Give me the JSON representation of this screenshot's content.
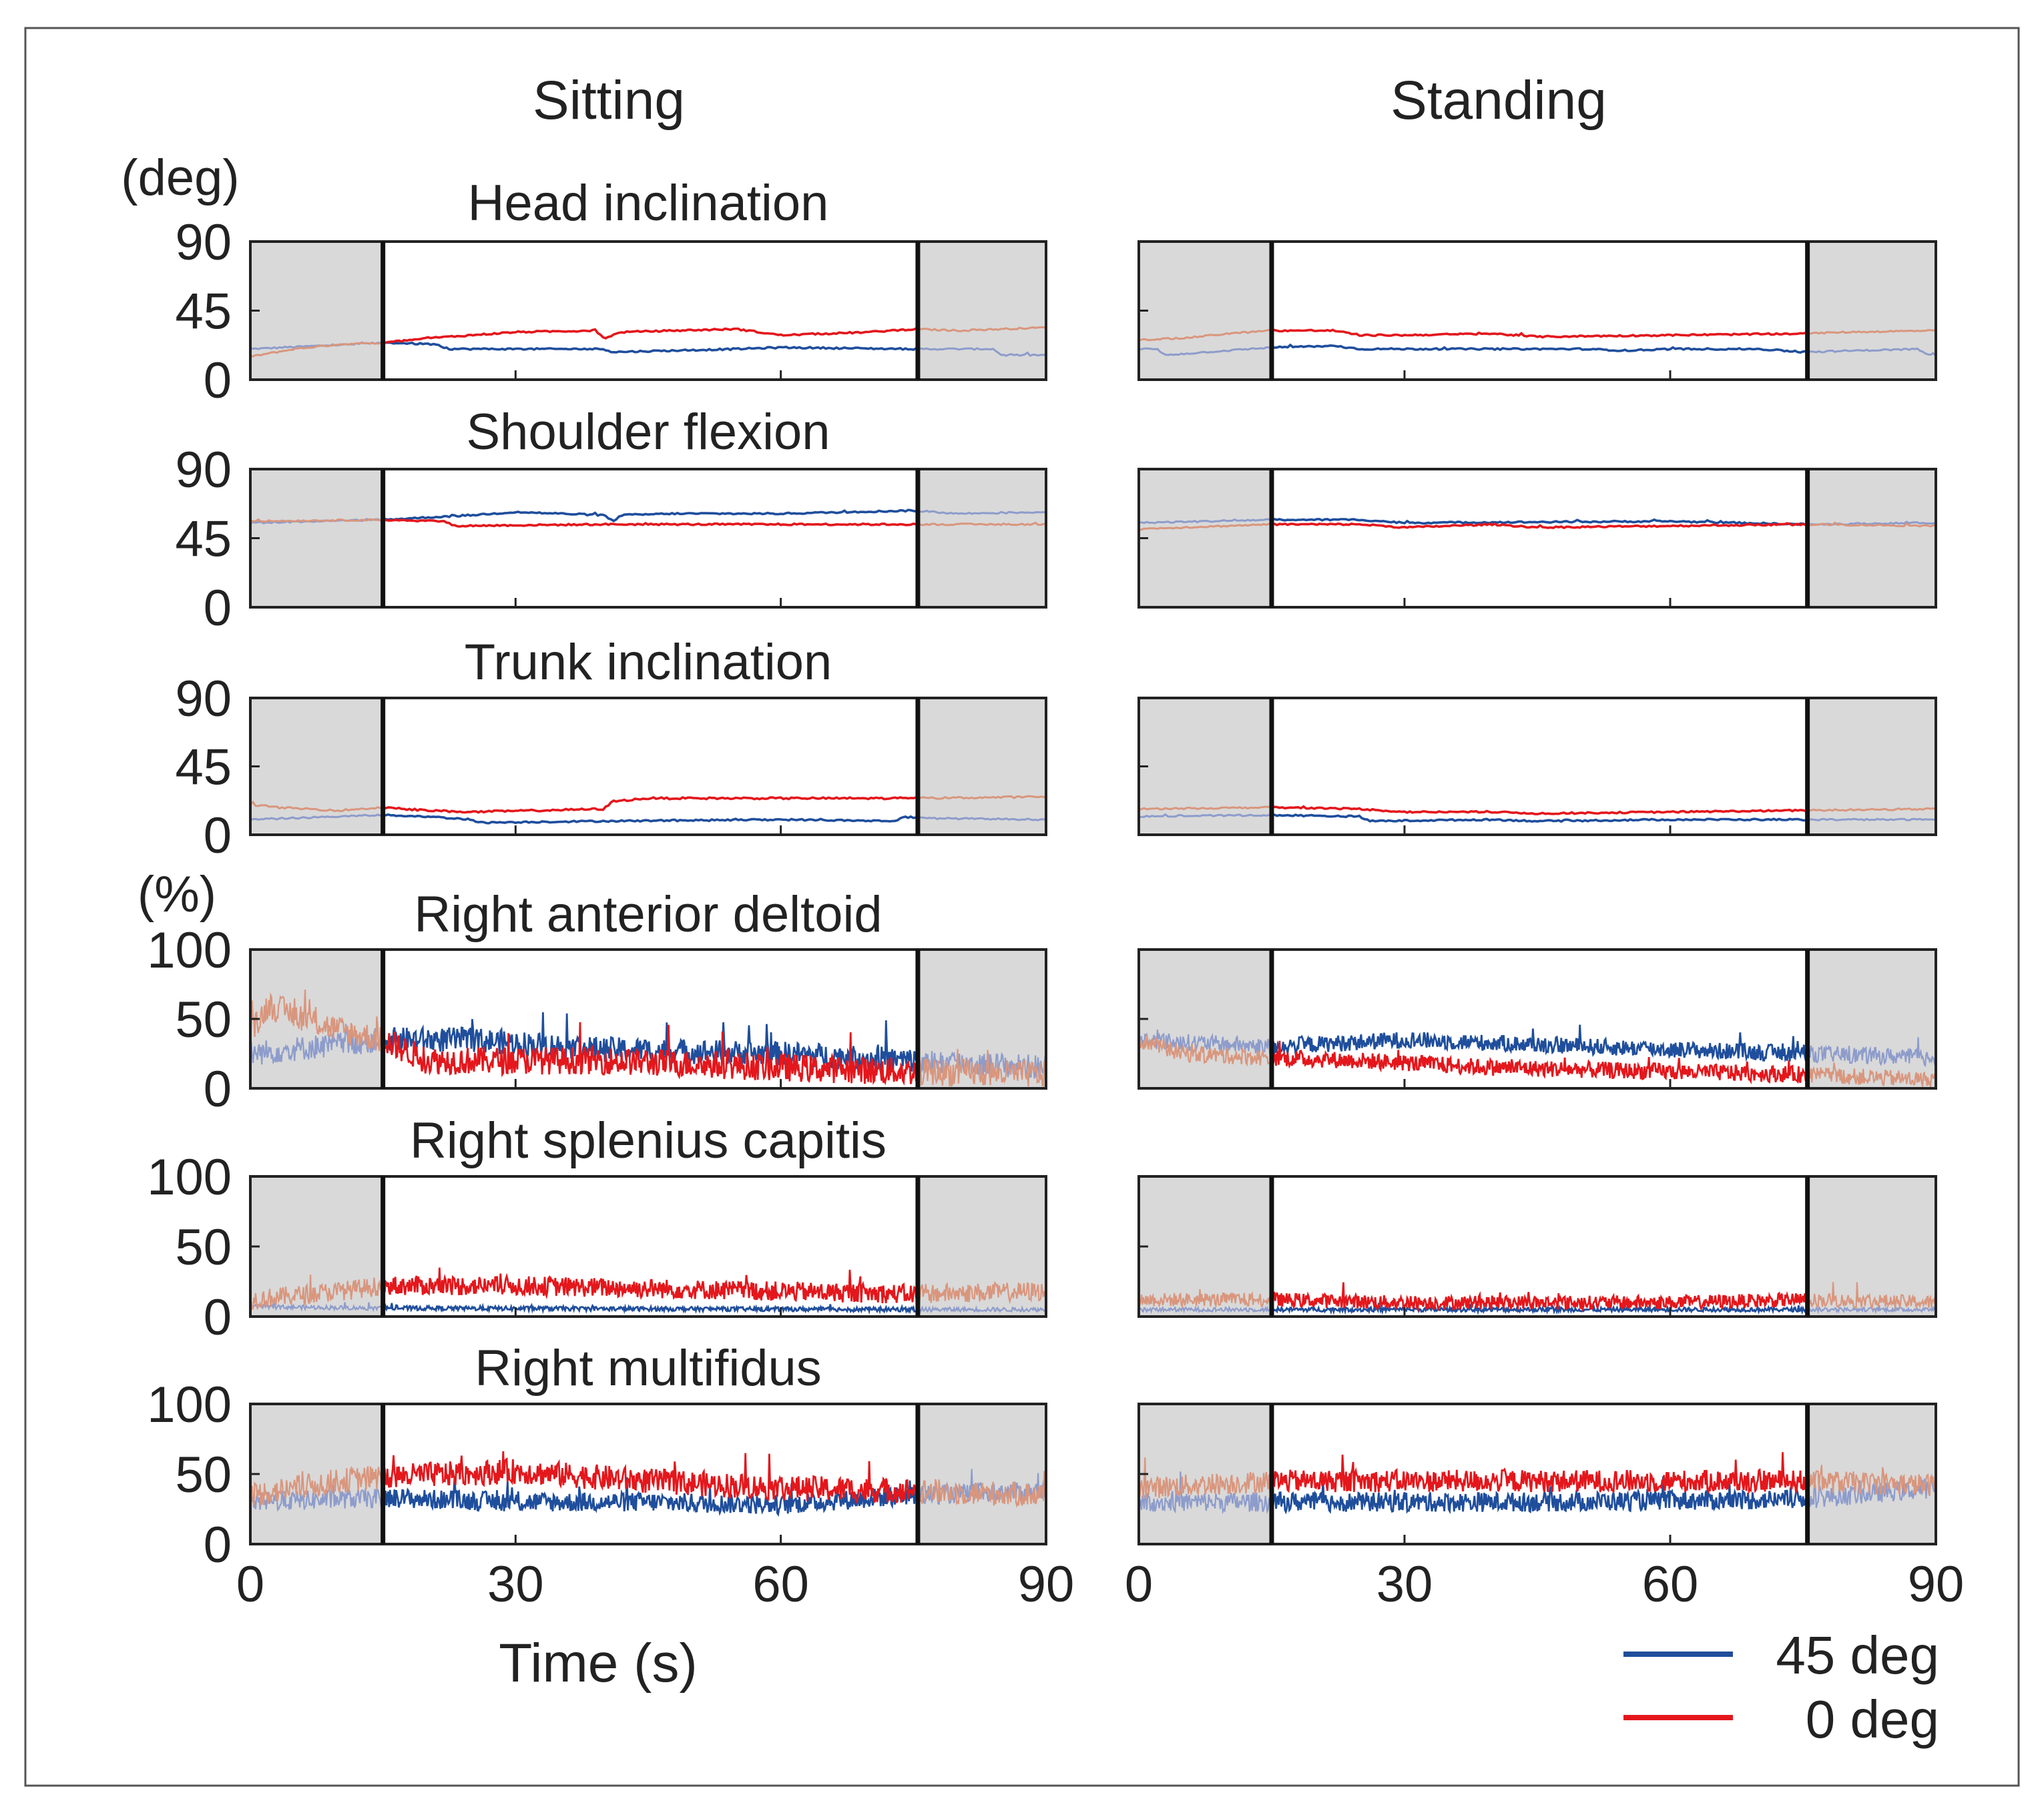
{
  "figure": {
    "column_titles": [
      "Sitting",
      "Standing"
    ],
    "angle_unit": "(deg)",
    "emg_unit": "(%)",
    "x_axis_label": "Time (s)",
    "x_ticks": [
      "0",
      "30",
      "60",
      "90"
    ],
    "legend": [
      {
        "label": "45 deg",
        "color": "#1f4e9c"
      },
      {
        "label": "0 deg",
        "color": "#e3171c"
      }
    ]
  },
  "chart_data": {
    "type": "line",
    "x_range": [
      0,
      90
    ],
    "x_unit": "s",
    "task_window": {
      "Sitting": [
        15,
        75.5
      ],
      "Standing": [
        15,
        75.5
      ]
    },
    "shaded_phases": "0–15 s and 75.5–90 s (outside task window, faded colors)",
    "colors": {
      "45 deg": "#1f4e9c",
      "0 deg": "#e3171c",
      "45 deg faded": "#8d9ccb",
      "0 deg faded": "#d9967d",
      "shade": "#d9d9d9"
    },
    "panels": [
      {
        "title": "Head inclination",
        "unit": "deg",
        "yticks": [
          "90",
          "45",
          "0"
        ],
        "ylim": [
          0,
          90
        ],
        "series": {
          "Sitting": {
            "45 deg": {
              "x": [
                0,
                15,
                16,
                21,
                22,
                40,
                41,
                55,
                60,
                75,
                78,
                84,
                85,
                90
              ],
              "y": [
                20,
                24,
                24,
                23,
                20,
                20,
                18,
                20,
                21,
                20,
                20,
                20,
                16,
                16
              ],
              "noise": 0.5
            },
            "0 deg": {
              "x": [
                0,
                5,
                10,
                15,
                20,
                25,
                30,
                39,
                40,
                41,
                42,
                48,
                55,
                60,
                70,
                75,
                80,
                90
              ],
              "y": [
                15,
                20,
                23,
                24,
                27,
                29,
                31,
                32,
                27,
                29,
                31,
                32,
                33,
                29,
                31,
                33,
                32,
                34
              ],
              "noise": 0.5
            }
          },
          "Standing": {
            "45 deg": {
              "x": [
                0,
                2,
                3,
                10,
                15,
                22,
                25,
                30,
                50,
                55,
                60,
                70,
                75,
                88,
                89,
                90
              ],
              "y": [
                20,
                20,
                16,
                19,
                21,
                22,
                20,
                20,
                20,
                19,
                20,
                20,
                18,
                20,
                16,
                16
              ],
              "noise": 0.5
            },
            "0 deg": {
              "x": [
                0,
                5,
                10,
                15,
                22,
                25,
                30,
                40,
                45,
                60,
                75,
                80,
                90
              ],
              "y": [
                26,
                27,
                30,
                32,
                32,
                29,
                29,
                30,
                28,
                29,
                30,
                31,
                32
              ],
              "noise": 0.5
            }
          }
        }
      },
      {
        "title": "Shoulder flexion",
        "unit": "deg",
        "yticks": [
          "90",
          "45",
          "0"
        ],
        "ylim": [
          0,
          90
        ],
        "series": {
          "Sitting": {
            "45 deg": {
              "x": [
                0,
                15,
                25,
                30,
                40,
                41,
                42,
                48,
                60,
                75,
                80,
                90
              ],
              "y": [
                55,
                57,
                60,
                62,
                60,
                56,
                60,
                61,
                61,
                63,
                61,
                62
              ],
              "noise": 0.5
            },
            "0 deg": {
              "x": [
                0,
                15,
                22,
                23,
                40,
                60,
                75,
                80,
                90
              ],
              "y": [
                56,
                57,
                56,
                53,
                54,
                54,
                54,
                54,
                54
              ],
              "noise": 0.5
            }
          },
          "Standing": {
            "45 deg": {
              "x": [
                0,
                15,
                25,
                30,
                60,
                75,
                90
              ],
              "y": [
                55,
                57,
                57,
                55,
                56,
                54,
                55
              ],
              "noise": 0.5
            },
            "0 deg": {
              "x": [
                0,
                15,
                25,
                30,
                40,
                45,
                60,
                75,
                90
              ],
              "y": [
                51,
                54,
                54,
                52,
                54,
                52,
                53,
                54,
                53
              ],
              "noise": 0.5
            }
          }
        }
      },
      {
        "title": "Trunk inclination",
        "unit": "deg",
        "yticks": [
          "90",
          "45",
          "0"
        ],
        "ylim": [
          0,
          90
        ],
        "series": {
          "Sitting": {
            "45 deg": {
              "x": [
                0,
                10,
                15,
                20,
                25,
                26,
                40,
                60,
                73,
                74,
                75,
                90
              ],
              "y": [
                10,
                12,
                13,
                12,
                10,
                8,
                9,
                10,
                9,
                12,
                11,
                10
              ],
              "noise": 0.5
            },
            "0 deg": {
              "x": [
                0,
                3,
                10,
                15,
                20,
                25,
                40,
                41,
                45,
                60,
                75,
                90
              ],
              "y": [
                20,
                18,
                16,
                18,
                16,
                15,
                17,
                22,
                24,
                24,
                24,
                25
              ],
              "noise": 0.6
            }
          },
          "Standing": {
            "45 deg": {
              "x": [
                0,
                15,
                25,
                26,
                40,
                45,
                60,
                75,
                90
              ],
              "y": [
                12,
                13,
                12,
                9,
                10,
                9,
                10,
                10,
                10
              ],
              "noise": 0.5
            },
            "0 deg": {
              "x": [
                0,
                15,
                25,
                30,
                40,
                45,
                60,
                75,
                90
              ],
              "y": [
                17,
                18,
                17,
                15,
                15,
                14,
                15,
                16,
                17
              ],
              "noise": 0.5
            }
          }
        }
      },
      {
        "title": "Right anterior deltoid",
        "unit": "%",
        "yticks": [
          "100",
          "50",
          "0"
        ],
        "ylim": [
          0,
          100
        ],
        "series": {
          "Sitting": {
            "45 deg": {
              "x": [
                0,
                15,
                25,
                40,
                60,
                75,
                90
              ],
              "y": [
                25,
                35,
                35,
                28,
                25,
                20,
                15
              ],
              "noise": 9
            },
            "0 deg": {
              "x": [
                0,
                2,
                10,
                15,
                20,
                40,
                60,
                75,
                90
              ],
              "y": [
                38,
                60,
                42,
                35,
                20,
                20,
                15,
                12,
                10
              ],
              "noise": 10
            }
          },
          "Standing": {
            "45 deg": {
              "x": [
                0,
                15,
                30,
                60,
                75,
                90
              ],
              "y": [
                35,
                30,
                35,
                28,
                25,
                22
              ],
              "noise": 6
            },
            "0 deg": {
              "x": [
                0,
                5,
                15,
                25,
                40,
                60,
                75,
                90
              ],
              "y": [
                35,
                25,
                22,
                20,
                15,
                12,
                10,
                6
              ],
              "noise": 6
            }
          }
        }
      },
      {
        "title": "Right splenius capitis",
        "unit": "%",
        "yticks": [
          "100",
          "50",
          "0"
        ],
        "ylim": [
          0,
          100
        ],
        "series": {
          "Sitting": {
            "45 deg": {
              "x": [
                0,
                15,
                75,
                90
              ],
              "y": [
                7,
                6,
                5,
                5
              ],
              "noise": 1.5
            },
            "0 deg": {
              "x": [
                0,
                10,
                15,
                30,
                45,
                60,
                75,
                90
              ],
              "y": [
                12,
                18,
                22,
                22,
                20,
                18,
                16,
                18
              ],
              "noise": 7
            }
          },
          "Standing": {
            "45 deg": {
              "x": [
                0,
                15,
                75,
                90
              ],
              "y": [
                5,
                5,
                5,
                5
              ],
              "noise": 1.5
            },
            "0 deg": {
              "x": [
                0,
                15,
                30,
                45,
                60,
                75,
                90
              ],
              "y": [
                12,
                12,
                10,
                10,
                10,
                12,
                10
              ],
              "noise": 5
            }
          }
        }
      },
      {
        "title": "Right multifidus",
        "unit": "%",
        "yticks": [
          "100",
          "50",
          "0"
        ],
        "ylim": [
          0,
          100
        ],
        "series": {
          "Sitting": {
            "45 deg": {
              "x": [
                0,
                15,
                30,
                45,
                60,
                75,
                90
              ],
              "y": [
                30,
                33,
                30,
                30,
                28,
                35,
                38
              ],
              "noise": 7
            },
            "0 deg": {
              "x": [
                0,
                10,
                15,
                30,
                45,
                60,
                75,
                90
              ],
              "y": [
                35,
                45,
                48,
                52,
                45,
                40,
                38,
                35
              ],
              "noise": 9
            }
          },
          "Standing": {
            "45 deg": {
              "x": [
                0,
                15,
                45,
                75,
                90
              ],
              "y": [
                30,
                30,
                30,
                32,
                40
              ],
              "noise": 7
            },
            "0 deg": {
              "x": [
                0,
                15,
                45,
                75,
                90
              ],
              "y": [
                40,
                45,
                45,
                45,
                42
              ],
              "noise": 8
            }
          }
        }
      }
    ]
  }
}
